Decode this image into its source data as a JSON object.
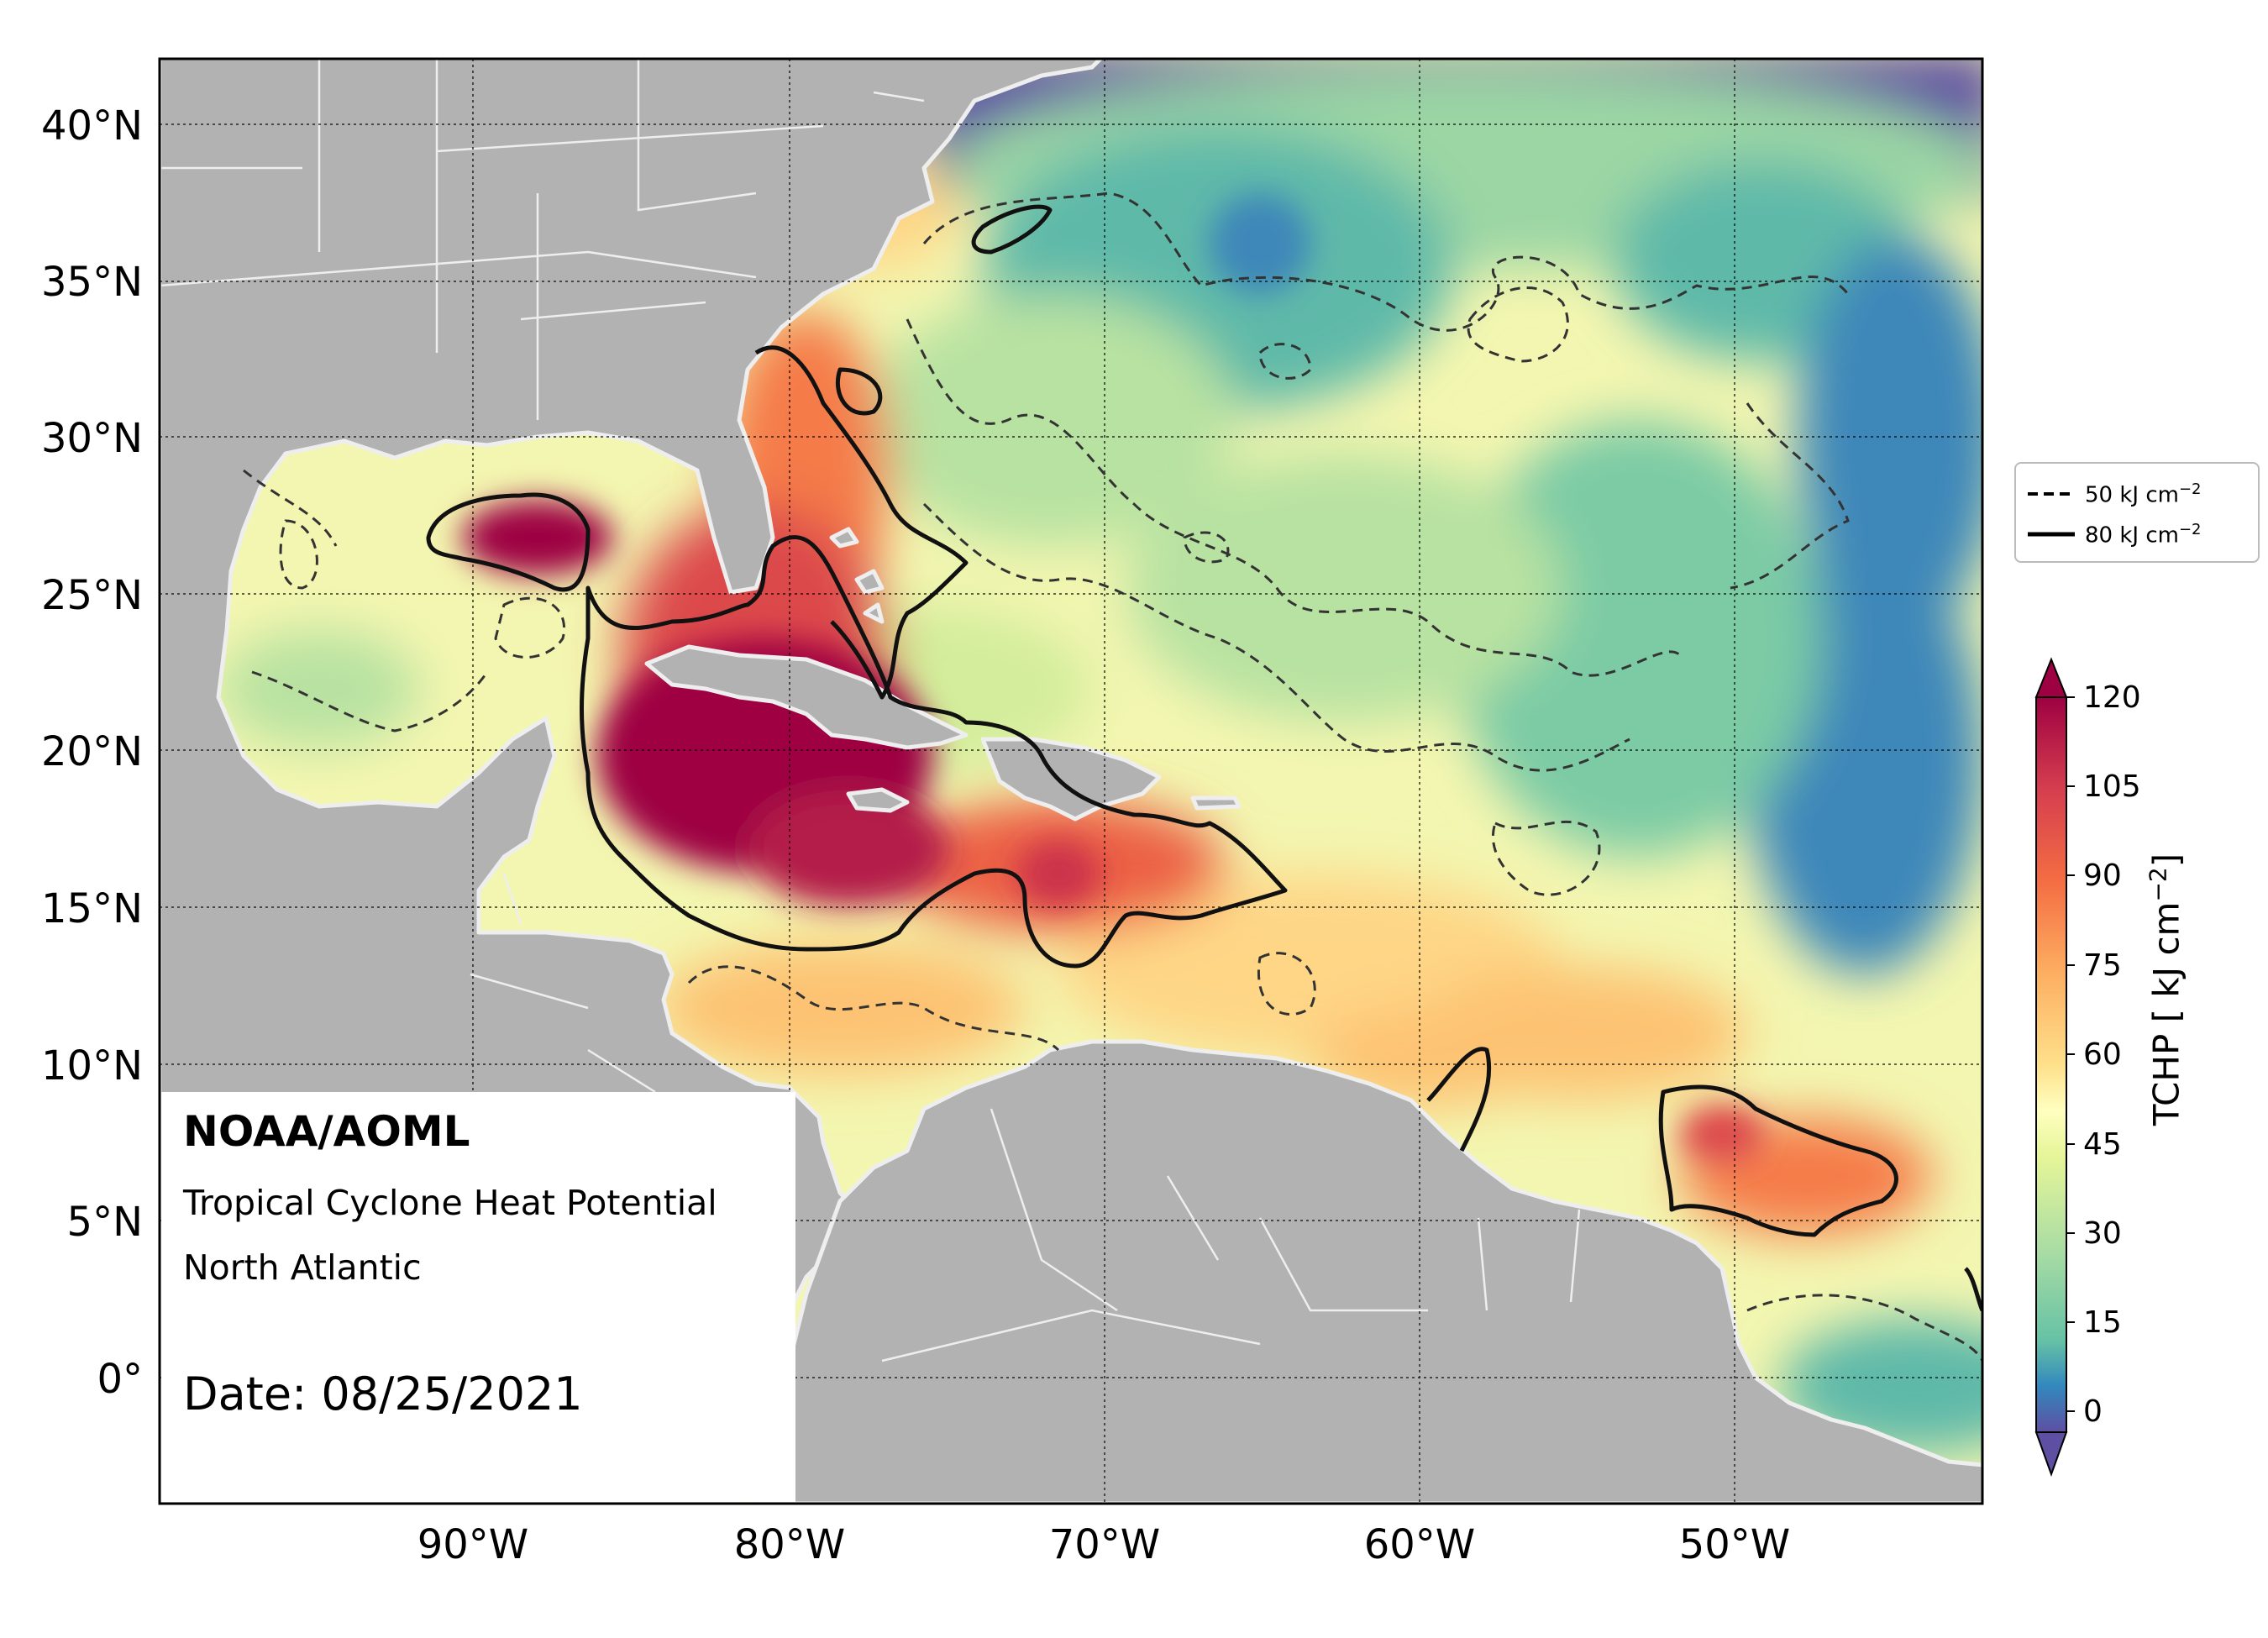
{
  "map": {
    "lat_ticks": [
      "40°N",
      "35°N",
      "30°N",
      "25°N",
      "20°N",
      "15°N",
      "10°N",
      "5°N",
      "0°"
    ],
    "lon_ticks": [
      "90°W",
      "80°W",
      "70°W",
      "60°W",
      "50°W"
    ],
    "land_color": "#b2b2b2",
    "coast_color": "#eeeeee"
  },
  "info": {
    "org": "NOAA/AOML",
    "product": "Tropical Cyclone Heat Potential",
    "region": "North Atlantic",
    "date": "Date: 08/25/2021"
  },
  "legend": {
    "dashed_label": "50 kJ cm",
    "solid_label": "80 kJ cm",
    "exponent": "−2"
  },
  "colorbar": {
    "ticks": [
      "120",
      "105",
      "90",
      "75",
      "60",
      "45",
      "30",
      "15",
      "0"
    ],
    "label": "TCHP [ kJ cm",
    "label_exponent": "−2",
    "label_end": "]",
    "colors": [
      "#9e0142",
      "#b41f48",
      "#cb334c",
      "#dc494c",
      "#ec6145",
      "#f57b4a",
      "#f99555",
      "#fcad61",
      "#fdc373",
      "#fed686",
      "#fee89a",
      "#fff6b0",
      "#f8fbb0",
      "#eaf69e",
      "#d3ed9c",
      "#b8e2a1",
      "#9bd6a4",
      "#7ccba5",
      "#5fb9a9",
      "#4aa1b1",
      "#3d87b9",
      "#486cb0",
      "#5757a3",
      "#5e4fa2"
    ]
  }
}
